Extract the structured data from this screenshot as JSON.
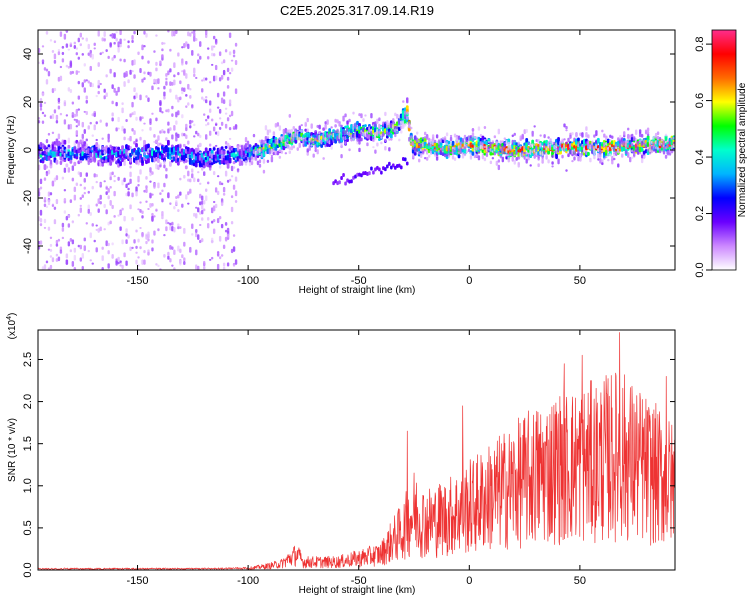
{
  "title": "C2E5.2025.317.09.14.R19",
  "chart_data": [
    {
      "type": "heatmap",
      "name": "spectrogram",
      "xlabel": "Height of straight line (km)",
      "ylabel": "Frequency (Hz)",
      "xlim": [
        -195,
        93
      ],
      "ylim": [
        -50,
        50
      ],
      "xticks": [
        -150,
        -100,
        -50,
        0,
        50
      ],
      "yticks": [
        40,
        20,
        0,
        -20,
        -40
      ],
      "colorbar": {
        "label": "Normalized spectral amplitude",
        "range": [
          0.0,
          0.85
        ],
        "ticks": [
          0.0,
          0.2,
          0.4,
          0.6,
          0.8
        ],
        "colors": [
          "#ffffff",
          "#cc88ff",
          "#6a00ff",
          "#0000ff",
          "#00b4ff",
          "#00ffcc",
          "#00ff00",
          "#ffff00",
          "#ff6a00",
          "#ff0000",
          "#ff2d8c"
        ]
      },
      "ridge": {
        "x": [
          -195,
          -180,
          -160,
          -140,
          -120,
          -105,
          -95,
          -85,
          -78,
          -70,
          -60,
          -50,
          -40,
          -32,
          -28,
          -26,
          -20,
          -10,
          0,
          20,
          40,
          60,
          80,
          93
        ],
        "y": [
          -2,
          -1,
          -2,
          -1,
          -3,
          -2,
          0,
          3,
          6,
          4,
          6,
          8,
          7,
          10,
          16,
          2,
          2,
          0,
          2,
          0,
          1,
          1,
          2,
          3
        ]
      }
    },
    {
      "type": "line",
      "name": "snr",
      "xlabel": "Height of straight line (km)",
      "ylabel": "SNR (10 * v/v)",
      "multiplier": "(x10",
      "multiplier_exp": "4",
      "multiplier_close": ")",
      "xlim": [
        -195,
        93
      ],
      "ylim": [
        0,
        2.85
      ],
      "xticks": [
        -150,
        -100,
        -50,
        0,
        50
      ],
      "yticks": [
        0.0,
        0.5,
        1.0,
        1.5,
        2.0,
        2.5
      ],
      "color": "#ee3333",
      "envelope": {
        "x": [
          -195,
          -120,
          -100,
          -90,
          -85,
          -78,
          -75,
          -60,
          -50,
          -40,
          -35,
          -30,
          -25,
          -20,
          -10,
          0,
          10,
          20,
          30,
          40,
          50,
          60,
          68,
          80,
          93
        ],
        "y": [
          0.02,
          0.02,
          0.03,
          0.08,
          0.12,
          0.3,
          0.15,
          0.15,
          0.22,
          0.3,
          0.55,
          0.75,
          1.1,
          0.9,
          1.0,
          1.2,
          1.4,
          1.6,
          1.8,
          1.95,
          2.0,
          2.1,
          2.2,
          1.9,
          1.6
        ]
      },
      "peaks": [
        {
          "x": -28,
          "y": 1.65
        },
        {
          "x": -3,
          "y": 1.95
        },
        {
          "x": 43,
          "y": 2.45
        },
        {
          "x": 51,
          "y": 2.55
        },
        {
          "x": 68,
          "y": 2.82
        },
        {
          "x": 89,
          "y": 2.3
        }
      ]
    }
  ]
}
